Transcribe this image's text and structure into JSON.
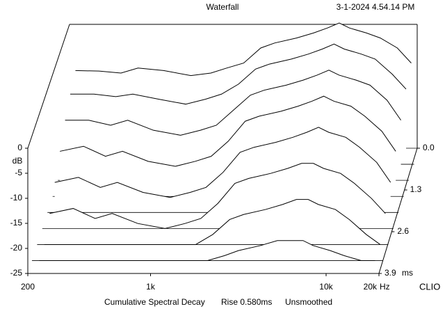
{
  "chart_data": {
    "type": "waterfall",
    "title": "Waterfall",
    "timestamp": "3-1-2024 4.54.14 PM",
    "y_label": "dB",
    "x_unit": "Hz",
    "z_unit": "ms",
    "brand": "CLIO",
    "footer": [
      "Cumulative Spectral Decay",
      "Rise 0.580ms",
      "Unsmoothed"
    ],
    "xscale": "log",
    "xlim": [
      200,
      20000
    ],
    "xticks": [
      200,
      {
        "value": 1000,
        "label": "1k"
      },
      {
        "value": 10000,
        "label": "10k"
      },
      {
        "value": 20000,
        "label": "20k"
      }
    ],
    "ylim": [
      -25,
      0
    ],
    "yticks": [
      0,
      -5,
      -10,
      -15,
      -20,
      -25
    ],
    "zlim": [
      0,
      3.9
    ],
    "zticks": [
      {
        "value": 0,
        "label": "0.0"
      },
      1.3,
      2.6,
      3.9
    ],
    "color": "#000000",
    "frequencies": [
      220,
      300,
      400,
      500,
      700,
      1000,
      1300,
      1600,
      2000,
      2500,
      3000,
      4000,
      5000,
      6000,
      7000,
      8000,
      10000,
      12000,
      15000,
      18000
    ],
    "slices": [
      {
        "t": 0,
        "values": [
          -9.5,
          -9.6,
          -10,
          -9,
          -9.5,
          -10.5,
          -10,
          -9,
          -8,
          -5,
          -4,
          -3,
          -2,
          -1,
          0,
          -1,
          -2,
          -3,
          -5,
          -8
        ]
      },
      {
        "t": 0.5,
        "values": [
          -11,
          -11,
          -11.5,
          -11,
          -12,
          -13,
          -12,
          -11,
          -9,
          -6,
          -5,
          -4,
          -3,
          -2,
          -1,
          -2,
          -3,
          -4,
          -7,
          -10
        ]
      },
      {
        "t": 1,
        "values": [
          -13,
          -13,
          -14,
          -13,
          -15,
          -16,
          -15,
          -14,
          -11,
          -8,
          -7,
          -6,
          -5,
          -4,
          -3,
          -4,
          -5,
          -6,
          -9,
          -13
        ]
      },
      {
        "t": 1.5,
        "values": [
          -16,
          -15,
          -17,
          -16,
          -18,
          -19,
          -18,
          -17,
          -14,
          -10,
          -9,
          -8,
          -7,
          -6,
          -5,
          -6,
          -7,
          -9,
          -12,
          -16
        ]
      },
      {
        "t": 2,
        "values": [
          -19,
          -18,
          -20,
          -19,
          -21,
          -22,
          -21,
          -20,
          -17,
          -13,
          -12,
          -11,
          -10,
          -9,
          -8,
          -9,
          -10,
          -12,
          -15,
          -19
        ]
      },
      {
        "t": 2.5,
        "values": [
          -22,
          -21,
          -23,
          -22,
          -24,
          -25,
          -24,
          -23,
          -20,
          -16,
          -15,
          -14,
          -13,
          -12,
          -12,
          -13,
          -14,
          -16,
          -19,
          -22
        ]
      },
      {
        "t": 3,
        "values": [
          -25,
          -25,
          -25,
          -25,
          -25,
          -25,
          -25,
          -25,
          -23,
          -20,
          -19,
          -18,
          -17,
          -16,
          -16,
          -17,
          -18,
          -20,
          -23,
          -25
        ]
      },
      {
        "t": 3.5,
        "values": [
          -25,
          -25,
          -25,
          -25,
          -25,
          -25,
          -25,
          -25,
          -25,
          -24,
          -23,
          -22,
          -21,
          -21,
          -21,
          -22,
          -23,
          -24,
          -25,
          -25
        ]
      }
    ]
  }
}
